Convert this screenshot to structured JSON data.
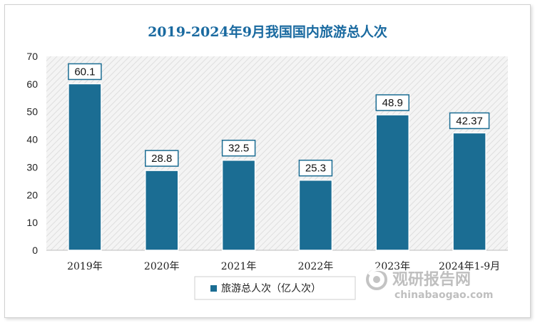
{
  "chart_data": {
    "type": "bar",
    "title": "2019-2024年9月我国国内旅游总人次",
    "categories": [
      "2019年",
      "2020年",
      "2021年",
      "2022年",
      "2023年",
      "2024年1-9月"
    ],
    "series": [
      {
        "name": "旅游总人次（亿人次）",
        "values": [
          60.1,
          28.8,
          32.5,
          25.3,
          48.9,
          42.37
        ]
      }
    ],
    "data_labels": [
      "60.1",
      "28.8",
      "32.5",
      "25.3",
      "48.9",
      "42.37"
    ],
    "ylim": [
      0,
      70
    ],
    "yticks": [
      0,
      10,
      20,
      30,
      40,
      50,
      60,
      70
    ],
    "grid": false,
    "legend_position": "bottom",
    "bar_color": "#1b6d93",
    "plot_background": "hatched light gray"
  },
  "watermark": {
    "name": "观研报告网",
    "url": "chinabaogao.com"
  }
}
